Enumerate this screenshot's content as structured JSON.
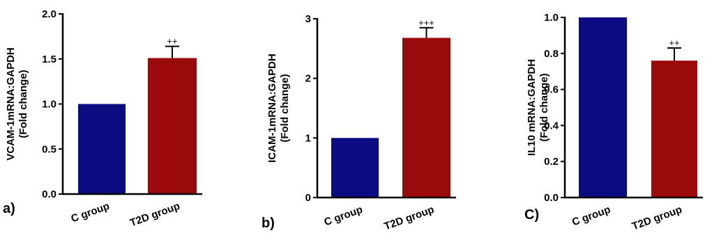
{
  "colors": {
    "c_group": "#0c0c82",
    "t2d_group": "#9b0a0a",
    "axis": "#000000"
  },
  "chart_data": [
    {
      "type": "bar",
      "panel_label": "a)",
      "categories": [
        "C group",
        "T2D group"
      ],
      "values": [
        1.0,
        1.51
      ],
      "errors": [
        0,
        0.13
      ],
      "annotations": [
        "",
        "++"
      ],
      "ylabel_line1": "VCAM-1mRNA:GAPDH",
      "ylabel_line2": "(Fold change)",
      "ylim": [
        0,
        2.0
      ],
      "yticks": [
        "0.0",
        "0.5",
        "1.0",
        "1.5",
        "2.0"
      ]
    },
    {
      "type": "bar",
      "panel_label": "b)",
      "categories": [
        "C group",
        "T2D group"
      ],
      "values": [
        1.0,
        2.68
      ],
      "errors": [
        0,
        0.17
      ],
      "annotations": [
        "",
        "+++"
      ],
      "ylabel_line1": "ICAM-1mRNA:GAPDH",
      "ylabel_line2": "(Fold change)",
      "ylim": [
        0,
        3
      ],
      "yticks": [
        "0",
        "1",
        "2",
        "3"
      ]
    },
    {
      "type": "bar",
      "panel_label": "C)",
      "categories": [
        "C group",
        "T2D group"
      ],
      "values": [
        1.0,
        0.76
      ],
      "errors": [
        0,
        0.07
      ],
      "annotations": [
        "",
        "++"
      ],
      "ylabel_line1": "IL10 mRNA:GAPDH",
      "ylabel_line2": "(Fold change)",
      "ylim": [
        0,
        1.0
      ],
      "yticks": [
        "0.0",
        "0.2",
        "0.4",
        "0.6",
        "0.8",
        "1.0"
      ]
    }
  ]
}
